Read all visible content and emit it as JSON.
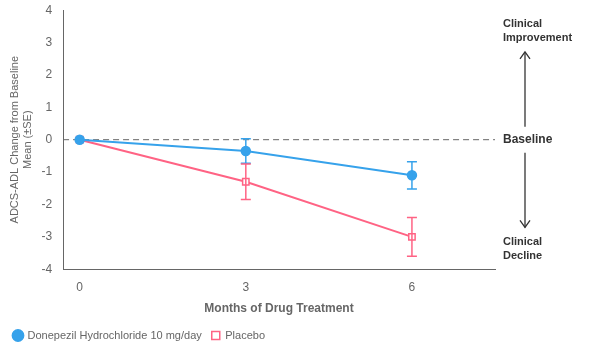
{
  "chart_data": {
    "type": "line",
    "x": [
      0,
      3,
      6
    ],
    "series": [
      {
        "name": "Donepezil Hydrochloride 10 mg/day",
        "values": [
          0,
          -0.35,
          -1.1
        ],
        "errors": [
          0,
          0.38,
          0.42
        ],
        "marker": "circle"
      },
      {
        "name": "Placebo",
        "values": [
          0,
          -1.3,
          -3.0
        ],
        "errors": [
          0,
          0.55,
          0.6
        ],
        "marker": "square_open"
      }
    ],
    "x_label": "Months of Drug Treatment",
    "y_label": "ADCS-ADL Change from Baseline\nMean (±SE)",
    "xlim": [
      -0.3,
      7.5
    ],
    "xticks": [
      0,
      3,
      6
    ],
    "ylim": [
      -4,
      4
    ],
    "yticks": [
      -4,
      -3,
      -2,
      -1,
      0,
      1,
      2,
      3,
      4
    ],
    "grid": false,
    "legend": "lower left",
    "annotations": [
      {
        "text": "Baseline",
        "y": 0,
        "line_style": "dashed"
      },
      {
        "text": "Clinical\nImprovement",
        "arrow": "up"
      },
      {
        "text": "Clinical\nDecline",
        "arrow": "down"
      }
    ]
  }
}
